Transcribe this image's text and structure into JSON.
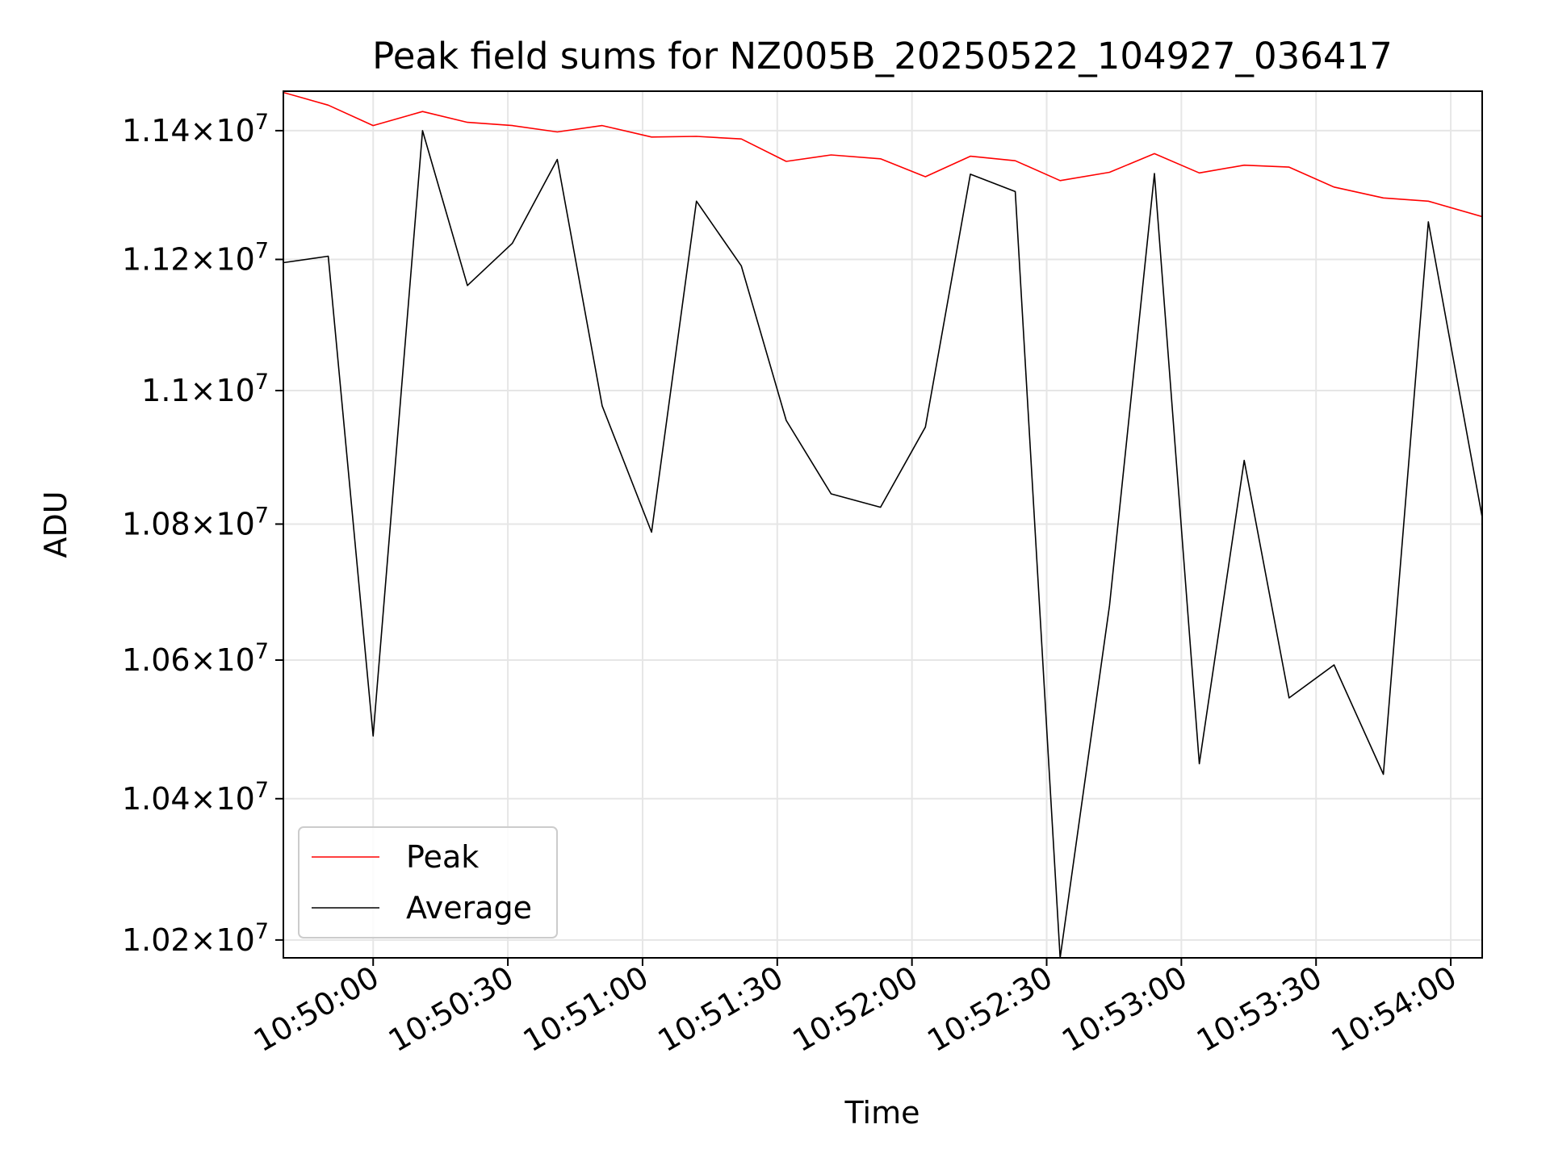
{
  "chart_data": {
    "type": "line",
    "title": "Peak field sums for NZ005B_20250522_104927_036417",
    "xlabel": "Time",
    "ylabel": "ADU",
    "x_type": "time",
    "x_ticks": [
      "10:50:00",
      "10:50:30",
      "10:51:00",
      "10:51:30",
      "10:52:00",
      "10:52:30",
      "10:53:00",
      "10:53:30",
      "10:54:00"
    ],
    "x_range": [
      "10:49:40",
      "10:54:07"
    ],
    "y_scale": "log",
    "y_ticks": [
      {
        "value": 10200000,
        "mantissa": "1.02",
        "exp": "7"
      },
      {
        "value": 10400000,
        "mantissa": "1.04",
        "exp": "7"
      },
      {
        "value": 10600000,
        "mantissa": "1.06",
        "exp": "7"
      },
      {
        "value": 10800000,
        "mantissa": "1.08",
        "exp": "7"
      },
      {
        "value": 11000000,
        "mantissa": "1.1",
        "exp": "7"
      },
      {
        "value": 11200000,
        "mantissa": "1.12",
        "exp": "7"
      },
      {
        "value": 11400000,
        "mantissa": "1.14",
        "exp": "7"
      }
    ],
    "ylim": [
      10175000,
      11462000
    ],
    "grid": true,
    "legend": "lower-left",
    "x": [
      "10:49:40",
      "10:49:50",
      "10:50:00",
      "10:50:11",
      "10:50:21",
      "10:50:31",
      "10:50:41",
      "10:50:51",
      "10:51:02",
      "10:51:12",
      "10:51:22",
      "10:51:32",
      "10:51:42",
      "10:51:53",
      "10:52:03",
      "10:52:13",
      "10:52:23",
      "10:52:33",
      "10:52:44",
      "10:52:54",
      "10:53:04",
      "10:53:14",
      "10:53:24",
      "10:53:34",
      "10:53:45",
      "10:53:55",
      "10:54:07"
    ],
    "series": [
      {
        "name": "Peak",
        "color": "#ff0000",
        "values": [
          11460000,
          11440000,
          11408000,
          11430000,
          11413000,
          11408000,
          11398000,
          11408000,
          11390000,
          11391000,
          11387000,
          11352000,
          11362000,
          11356000,
          11328000,
          11360000,
          11353000,
          11322000,
          11335000,
          11364000,
          11334000,
          11346000,
          11343000,
          11312000,
          11295000,
          11290000,
          11266000
        ]
      },
      {
        "name": "Average",
        "color": "#000000",
        "values": [
          11195000,
          11205000,
          10490000,
          11400000,
          11160000,
          11225000,
          11355000,
          10977000,
          10788000,
          11290000,
          11190000,
          10955000,
          10845000,
          10825000,
          10945000,
          11332000,
          11305000,
          10175000,
          10680000,
          11333000,
          10450000,
          10895000,
          10545000,
          10593000,
          10435000,
          11258000,
          10810000
        ]
      }
    ]
  }
}
